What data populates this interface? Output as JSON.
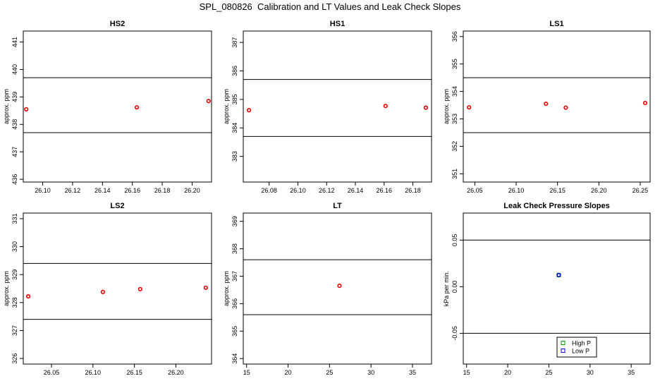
{
  "figure": {
    "title": "SPL_080826  Calibration and LT Values and Leak Check Slopes"
  },
  "chart_data": [
    {
      "type": "scatter",
      "title": "HS2",
      "xlabel": "",
      "ylabel": "approx. ppm",
      "xlim": [
        26.087,
        26.213
      ],
      "ylim": [
        435.9,
        441.4
      ],
      "xticks": [
        26.1,
        26.12,
        26.14,
        26.16,
        26.18,
        26.2
      ],
      "xtick_labels": [
        "26.10",
        "26.12",
        "26.14",
        "26.16",
        "26.18",
        "26.20"
      ],
      "yticks": [
        436,
        437,
        438,
        439,
        440,
        441
      ],
      "ytick_labels": [
        "436",
        "437",
        "438",
        "439",
        "440",
        "441"
      ],
      "hlines": [
        437.7,
        439.7
      ],
      "grid": false,
      "series": [
        {
          "color": "#e00000",
          "x": [
            26.089,
            26.163,
            26.211
          ],
          "y": [
            438.55,
            438.62,
            438.85
          ]
        }
      ]
    },
    {
      "type": "scatter",
      "title": "HS1",
      "xlabel": "",
      "ylabel": "approx. ppm",
      "xlim": [
        26.062,
        26.193
      ],
      "ylim": [
        382.1,
        387.4
      ],
      "xticks": [
        26.08,
        26.1,
        26.12,
        26.14,
        26.16,
        26.18
      ],
      "xtick_labels": [
        "26.08",
        "26.10",
        "26.12",
        "26.14",
        "26.16",
        "26.18"
      ],
      "yticks": [
        383,
        384,
        385,
        386,
        387
      ],
      "ytick_labels": [
        "383",
        "384",
        "385",
        "386",
        "387"
      ],
      "hlines": [
        383.7,
        385.7
      ],
      "grid": false,
      "series": [
        {
          "color": "#e00000",
          "x": [
            26.066,
            26.161,
            26.189
          ],
          "y": [
            384.62,
            384.77,
            384.71
          ]
        }
      ]
    },
    {
      "type": "scatter",
      "title": "LS1",
      "xlabel": "",
      "ylabel": "approx. ppm",
      "xlim": [
        26.036,
        26.262
      ],
      "ylim": [
        350.7,
        356.2
      ],
      "xticks": [
        26.05,
        26.1,
        26.15,
        26.2,
        26.25
      ],
      "xtick_labels": [
        "26.05",
        "26.10",
        "26.15",
        "26.20",
        "26.25"
      ],
      "yticks": [
        351,
        352,
        353,
        354,
        355,
        356
      ],
      "ytick_labels": [
        "351",
        "352",
        "353",
        "354",
        "355",
        "356"
      ],
      "hlines": [
        352.5,
        354.5
      ],
      "grid": false,
      "series": [
        {
          "color": "#e00000",
          "x": [
            26.043,
            26.136,
            26.16,
            26.256
          ],
          "y": [
            353.42,
            353.55,
            353.41,
            353.58
          ]
        }
      ]
    },
    {
      "type": "scatter",
      "title": "LS2",
      "xlabel": "",
      "ylabel": "approx. ppm",
      "xlim": [
        26.016,
        26.243
      ],
      "ylim": [
        325.8,
        331.2
      ],
      "xticks": [
        26.05,
        26.1,
        26.15,
        26.2
      ],
      "xtick_labels": [
        "26.05",
        "26.10",
        "26.15",
        "26.20"
      ],
      "yticks": [
        326,
        327,
        328,
        329,
        330,
        331
      ],
      "ytick_labels": [
        "326",
        "327",
        "328",
        "329",
        "330",
        "331"
      ],
      "hlines": [
        327.4,
        329.4
      ],
      "grid": false,
      "series": [
        {
          "color": "#e00000",
          "x": [
            26.022,
            26.112,
            26.157,
            26.236
          ],
          "y": [
            328.22,
            328.38,
            328.48,
            328.53
          ]
        }
      ]
    },
    {
      "type": "scatter",
      "title": "LT",
      "xlabel": "",
      "ylabel": "approx. ppm",
      "xlim": [
        14.6,
        37.3
      ],
      "ylim": [
        363.8,
        369.3
      ],
      "xticks": [
        15,
        20,
        25,
        30,
        35
      ],
      "xtick_labels": [
        "15",
        "20",
        "25",
        "30",
        "35"
      ],
      "yticks": [
        364,
        365,
        366,
        367,
        368,
        369
      ],
      "ytick_labels": [
        "364",
        "365",
        "366",
        "367",
        "368",
        "369"
      ],
      "hlines": [
        365.6,
        367.6
      ],
      "grid": false,
      "series": [
        {
          "color": "#e00000",
          "x": [
            26.2
          ],
          "y": [
            366.65
          ]
        }
      ]
    },
    {
      "type": "scatter",
      "title": "Leak Check Pressure Slopes",
      "xlabel": "",
      "ylabel": "kPa per min.",
      "xlim": [
        14.6,
        37.3
      ],
      "ylim": [
        -0.083,
        0.079
      ],
      "xticks": [
        15,
        20,
        25,
        30,
        35
      ],
      "xtick_labels": [
        "15",
        "20",
        "25",
        "30",
        "35"
      ],
      "yticks": [
        -0.05,
        0.0,
        0.05
      ],
      "ytick_labels": [
        "-0.05",
        "0.00",
        "0.05"
      ],
      "hlines": [
        -0.05,
        0.05
      ],
      "grid": false,
      "legend": "bottom-center",
      "series": [
        {
          "name": "High P",
          "color": "#00a000",
          "x": [
            26.2
          ],
          "y": [
            0.0125
          ]
        },
        {
          "name": "Low P",
          "color": "#0000dd",
          "x": [
            26.2
          ],
          "y": [
            0.0125
          ]
        }
      ]
    }
  ]
}
